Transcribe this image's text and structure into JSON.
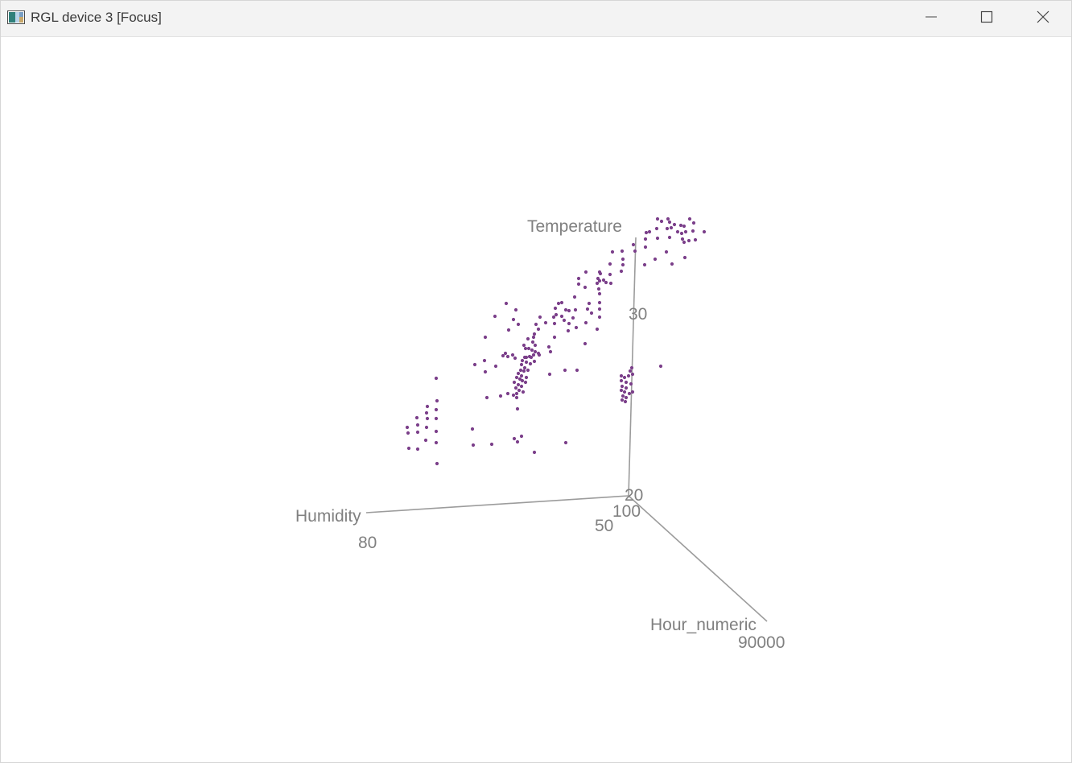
{
  "window": {
    "title": "RGL device 3 [Focus]",
    "icons": {
      "app": "rgl-app-icon",
      "minimize": "minimize-icon",
      "maximize": "maximize-icon",
      "close": "close-icon"
    }
  },
  "plot": {
    "point_color": "#7b3f8a",
    "axis_color": "#9c9c9c",
    "axis_labels": {
      "z": "Temperature",
      "x": "Humidity",
      "y": "Hour_numeric"
    },
    "tick_labels": {
      "t30": "30",
      "t20": "20",
      "h100": "100",
      "h50": "50",
      "h80": "80",
      "hour90000": "90000"
    }
  },
  "chart_data": {
    "type": "scatter",
    "dimensions": "3d",
    "xlabel": "Humidity",
    "ylabel": "Hour_numeric",
    "zlabel": "Temperature",
    "axis_ticks": {
      "Temperature": [
        "20",
        "30"
      ],
      "Humidity": [
        "100",
        "50",
        "80"
      ],
      "Hour_numeric": [
        "90000"
      ]
    },
    "point_color": "#7b3f8a",
    "note": "Projected 3D scatter; points listed as screen-space positions of the rendered projection"
  }
}
